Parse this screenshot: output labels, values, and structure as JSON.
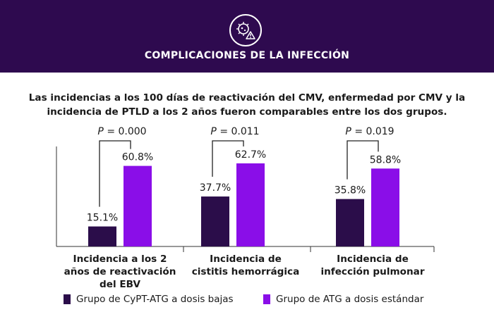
{
  "header": {
    "title": "COMPLICACIONES DE LA INFECCIÓN",
    "icon": "virus-warning-icon"
  },
  "subtitle": "Las incidencias a los 100 días de reactivación del CMV, enfermedad por CMV y la incidencia de PTLD a los 2 años fueron comparables entre los dos grupos.",
  "chart_data": {
    "type": "bar",
    "categories": [
      [
        "Incidencia a los 2",
        "años de reactivación",
        "del EBV"
      ],
      [
        "Incidencia de",
        "cistitis hemorrágica"
      ],
      [
        "Incidencia de",
        "infección pulmonar"
      ]
    ],
    "series": [
      {
        "name": "Grupo de CyPT-ATG a dosis bajas",
        "color": "#2b0d4a",
        "values": [
          15.1,
          37.7,
          35.8
        ],
        "labels": [
          "15.1%",
          "37.7%",
          "35.8%"
        ]
      },
      {
        "name": "Grupo de ATG a dosis estándar",
        "color": "#8a0ee8",
        "values": [
          60.8,
          62.7,
          58.8
        ],
        "labels": [
          "60.8%",
          "62.7%",
          "58.8%"
        ]
      }
    ],
    "pvalues": [
      "= 0.000",
      "= 0.011",
      "= 0.019"
    ],
    "p_label": "P",
    "ylim": [
      0,
      75
    ],
    "grid": false,
    "legend_position": "bottom"
  }
}
